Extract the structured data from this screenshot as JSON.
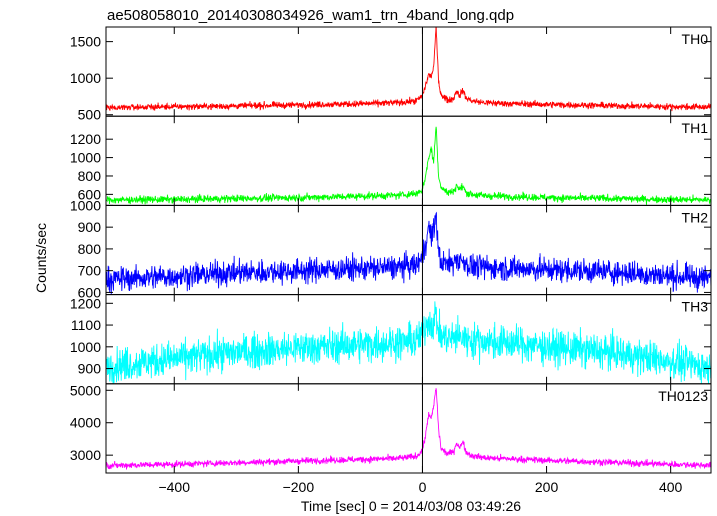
{
  "title": "ae508058010_20140308034926_wam1_trn_4band_long.qdp",
  "chart_data": {
    "type": "line",
    "title": "ae508058010_20140308034926_wam1_trn_4band_long.qdp",
    "xlabel": "Time [sec] 0 = 2014/03/08 03:49:26",
    "ylabel": "Counts/sec",
    "xlim": [
      -510,
      465
    ],
    "xticks": [
      -400,
      -200,
      0,
      200,
      400
    ],
    "x_tick_labels": [
      "−400",
      "−200",
      "0",
      "200",
      "400"
    ],
    "vline_x": 0,
    "panels": [
      {
        "name": "TH0",
        "color": "#ff0000",
        "ylim": [
          480,
          1700
        ],
        "yticks": [
          500,
          1000,
          1500
        ],
        "profile": {
          "x": [
            -510,
            -400,
            -300,
            -200,
            -100,
            -40,
            -10,
            0,
            5,
            10,
            14,
            18,
            22,
            26,
            30,
            40,
            50,
            55,
            60,
            65,
            70,
            80,
            100,
            150,
            200,
            300,
            400,
            465
          ],
          "y": [
            600,
            610,
            620,
            635,
            650,
            665,
            690,
            760,
            900,
            1050,
            1020,
            1150,
            1700,
            950,
            780,
            700,
            720,
            830,
            760,
            840,
            730,
            690,
            665,
            650,
            640,
            625,
            610,
            605
          ]
        },
        "noise": 22
      },
      {
        "name": "TH1",
        "color": "#00ff00",
        "ylim": [
          480,
          1450
        ],
        "yticks": [
          600,
          800,
          1000,
          1200
        ],
        "profile": {
          "x": [
            -510,
            -400,
            -300,
            -200,
            -100,
            -40,
            -10,
            0,
            5,
            10,
            14,
            18,
            22,
            26,
            30,
            40,
            50,
            55,
            60,
            65,
            70,
            80,
            100,
            150,
            200,
            300,
            400,
            465
          ],
          "y": [
            540,
            545,
            555,
            565,
            580,
            590,
            610,
            650,
            800,
            1000,
            1100,
            950,
            1350,
            800,
            680,
            620,
            630,
            700,
            650,
            690,
            620,
            600,
            585,
            575,
            565,
            555,
            545,
            540
          ]
        },
        "noise": 20
      },
      {
        "name": "TH2",
        "color": "#0000ff",
        "ylim": [
          590,
          1000
        ],
        "yticks": [
          600,
          700,
          800,
          900,
          1000
        ],
        "profile": {
          "x": [
            -510,
            -400,
            -300,
            -200,
            -100,
            -40,
            -10,
            0,
            5,
            10,
            14,
            18,
            22,
            26,
            30,
            40,
            50,
            55,
            60,
            65,
            70,
            80,
            100,
            150,
            200,
            300,
            400,
            465
          ],
          "y": [
            660,
            675,
            690,
            700,
            710,
            715,
            725,
            760,
            830,
            900,
            860,
            880,
            960,
            780,
            740,
            730,
            735,
            760,
            740,
            750,
            730,
            720,
            715,
            710,
            705,
            695,
            675,
            665
          ]
        },
        "noise": 28
      },
      {
        "name": "TH3",
        "color": "#00ffff",
        "ylim": [
          830,
          1240
        ],
        "yticks": [
          900,
          1000,
          1100,
          1200
        ],
        "profile": {
          "x": [
            -510,
            -400,
            -300,
            -200,
            -100,
            -40,
            -10,
            0,
            5,
            10,
            14,
            18,
            22,
            26,
            30,
            40,
            50,
            55,
            60,
            65,
            70,
            80,
            100,
            150,
            200,
            300,
            400,
            465
          ],
          "y": [
            910,
            945,
            975,
            995,
            1010,
            1020,
            1030,
            1060,
            1090,
            1130,
            1100,
            1120,
            1150,
            1070,
            1050,
            1040,
            1040,
            1050,
            1040,
            1045,
            1035,
            1030,
            1025,
            1015,
            1000,
            975,
            935,
            905
          ]
        },
        "noise": 40
      },
      {
        "name": "TH0123",
        "color": "#ff00ff",
        "ylim": [
          2450,
          5200
        ],
        "yticks": [
          3000,
          4000,
          5000
        ],
        "profile": {
          "x": [
            -510,
            -400,
            -300,
            -200,
            -100,
            -40,
            -10,
            0,
            5,
            10,
            14,
            18,
            22,
            26,
            30,
            40,
            50,
            55,
            60,
            65,
            70,
            80,
            100,
            150,
            200,
            300,
            400,
            465
          ],
          "y": [
            2680,
            2720,
            2770,
            2820,
            2870,
            2900,
            2960,
            3150,
            3600,
            4300,
            4100,
            4500,
            5100,
            3800,
            3200,
            3050,
            3100,
            3400,
            3200,
            3450,
            3100,
            2980,
            2920,
            2880,
            2840,
            2780,
            2720,
            2690
          ]
        },
        "noise": 50
      }
    ]
  }
}
